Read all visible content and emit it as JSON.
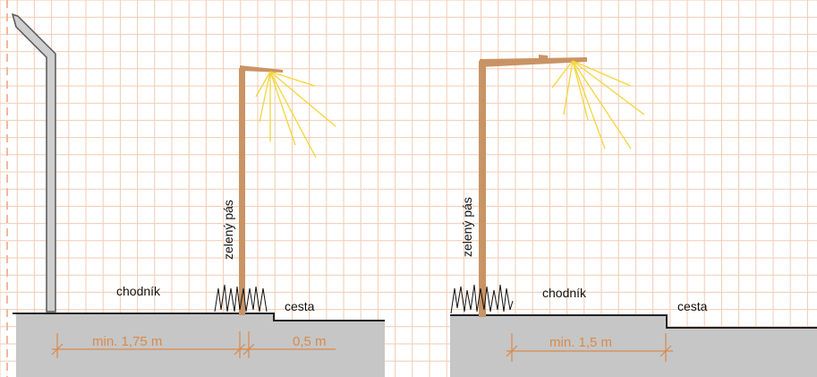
{
  "colors": {
    "grid": "#f3cbb3",
    "ground": "#c6c6c6",
    "pole": "#c99465",
    "light_rays": "#f5d53a",
    "dimension": "#d88a4c",
    "wall": "#c9c9c9",
    "grass": "#111111"
  },
  "left_scene": {
    "green_strip_label": "zelený pás",
    "sidewalk_label": "chodník",
    "road_label": "cesta",
    "dim_sidewalk": "min. 1,75 m",
    "dim_road_offset": "0,5 m"
  },
  "right_scene": {
    "green_strip_label": "zelený pás",
    "sidewalk_label": "chodník",
    "road_label": "cesta",
    "dim_sidewalk": "min. 1,5 m"
  }
}
